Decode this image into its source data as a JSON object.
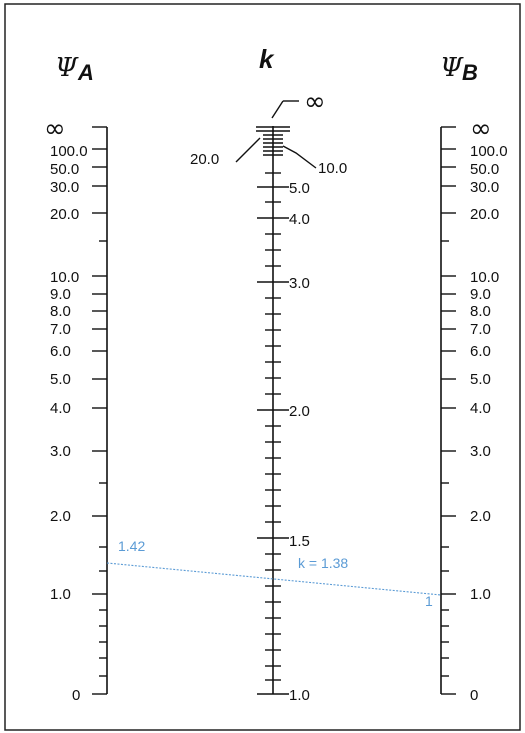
{
  "headers": {
    "psi_a_symbol": "Ψ",
    "psi_a_sub": "A",
    "k": "k",
    "psi_b_symbol": "Ψ",
    "psi_b_sub": "B"
  },
  "scale_psi_a": {
    "infinity": "∞",
    "labels": [
      "100.0",
      "50.0",
      "30.0",
      "20.0",
      "10.0",
      "9.0",
      "8.0",
      "7.0",
      "6.0",
      "5.0",
      "4.0",
      "3.0",
      "2.0",
      "1.0",
      "0"
    ]
  },
  "scale_psi_b": {
    "infinity": "∞",
    "labels": [
      "100.0",
      "50.0",
      "30.0",
      "20.0",
      "10.0",
      "9.0",
      "8.0",
      "7.0",
      "6.0",
      "5.0",
      "4.0",
      "3.0",
      "2.0",
      "1.0",
      "0"
    ]
  },
  "scale_k": {
    "infinity": "∞",
    "label_20": "20.0",
    "label_10": "10.0",
    "labels": [
      "5.0",
      "4.0",
      "3.0",
      "2.0",
      "1.5",
      "1.0"
    ]
  },
  "annotation": {
    "psi_a_value": "1.42",
    "psi_b_value": "1",
    "k_result": "k = 1.38",
    "line_color": "#5b9bd5"
  }
}
